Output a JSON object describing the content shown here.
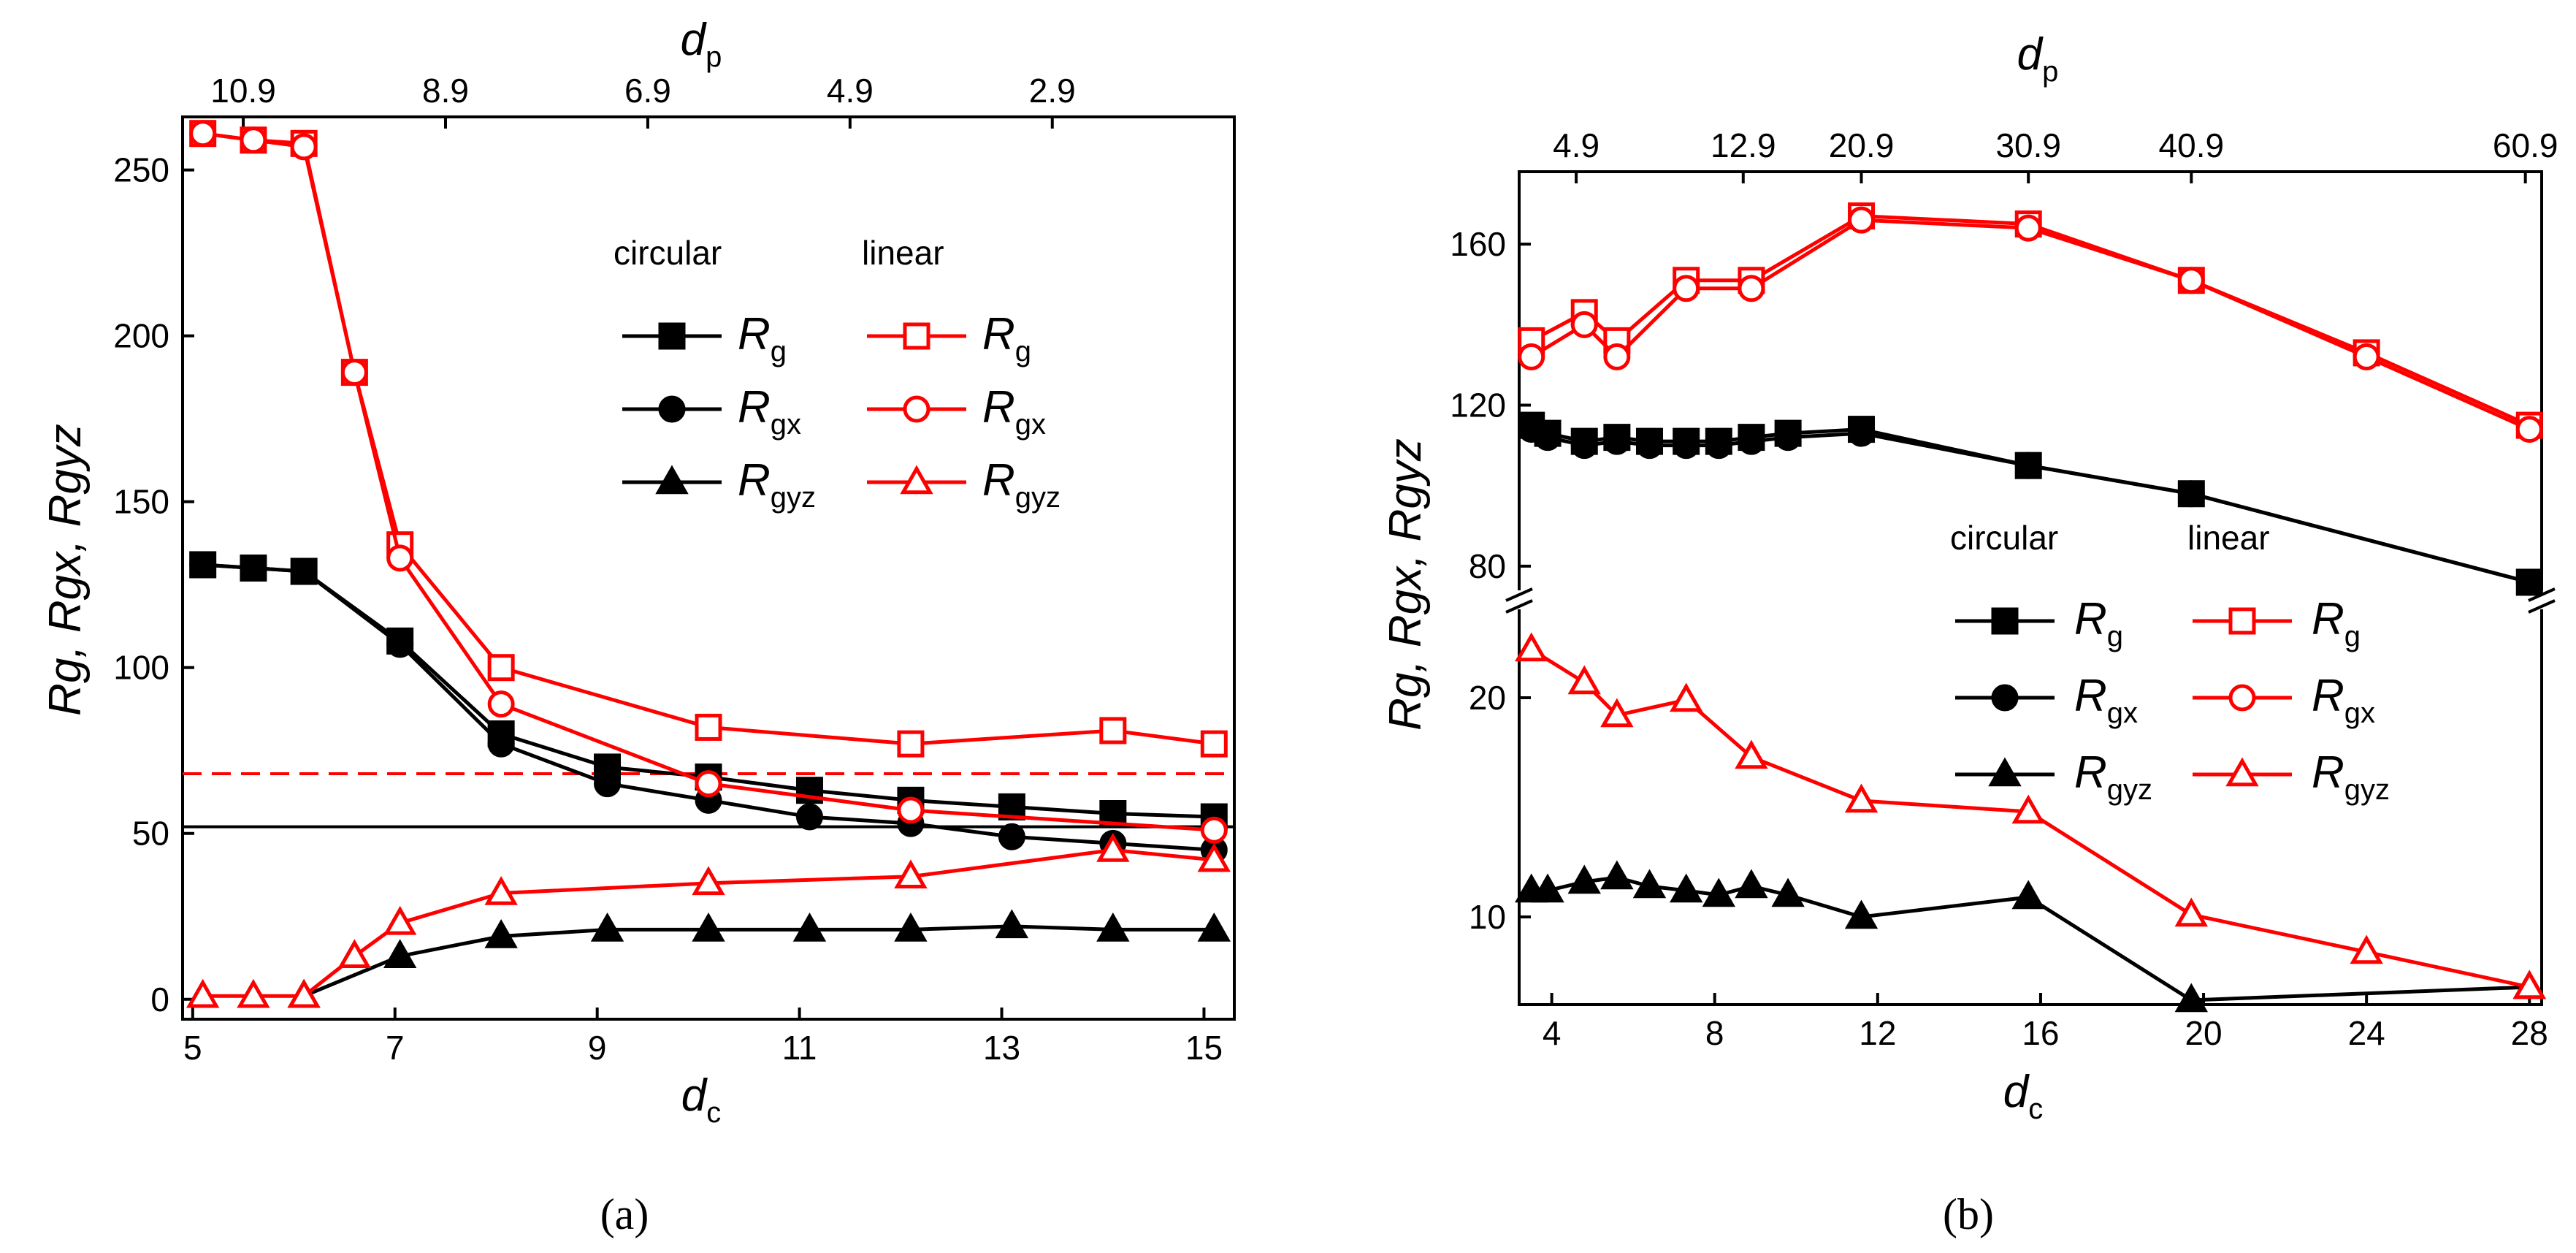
{
  "captions": [
    "(a)",
    "(b)"
  ],
  "chart_data": [
    {
      "type": "line",
      "panel": "a",
      "xlabel": {
        "main": "d",
        "sub": "c"
      },
      "x2label": {
        "main": "d",
        "sub": "p"
      },
      "ylabel": "Rg, Rgx, Rgyz",
      "xlim": [
        4.9,
        15.3
      ],
      "ylim": [
        -6,
        266
      ],
      "xticks": [
        5,
        7,
        9,
        11,
        13,
        15
      ],
      "xtick_labels": [
        "5",
        "7",
        "9",
        "11",
        "13",
        "15"
      ],
      "yticks": [
        0,
        50,
        100,
        150,
        200,
        250
      ],
      "ytick_labels": [
        "0",
        "50",
        "100",
        "150",
        "200",
        "250"
      ],
      "x2ticks": [
        5.5,
        7.5,
        9.5,
        11.5,
        13.5
      ],
      "x2tick_labels": [
        "10.9",
        "8.9",
        "6.9",
        "4.9",
        "2.9"
      ],
      "legend_headers": [
        "circular",
        "linear"
      ],
      "legend_labels": [
        {
          "main": "R",
          "sub": "g"
        },
        {
          "main": "R",
          "sub": "gx"
        },
        {
          "main": "R",
          "sub": "gyz"
        }
      ],
      "ref_lines": [
        {
          "y": 52,
          "color": "#000000",
          "style": "solid"
        },
        {
          "y": 68,
          "color": "#ff0000",
          "style": "dashed"
        }
      ],
      "series": [
        {
          "name": "circular Rg",
          "color": "#000000",
          "marker": "square",
          "filled": true,
          "x": [
            5.1,
            5.6,
            6.1,
            7.05,
            8.05,
            9.1,
            10.1,
            11.1,
            12.1,
            13.1,
            14.1,
            15.1
          ],
          "y": [
            131,
            130,
            129,
            108,
            80,
            70,
            67,
            63,
            60,
            58,
            56,
            55
          ]
        },
        {
          "name": "circular Rgx",
          "color": "#000000",
          "marker": "circle",
          "filled": true,
          "x": [
            5.1,
            5.6,
            6.1,
            7.05,
            8.05,
            9.1,
            10.1,
            11.1,
            12.1,
            13.1,
            14.1,
            15.1
          ],
          "y": [
            131,
            130,
            129,
            107,
            77,
            65,
            60,
            55,
            53,
            49,
            47,
            45
          ]
        },
        {
          "name": "circular Rgyz",
          "color": "#000000",
          "marker": "triangle",
          "filled": true,
          "x": [
            6.1,
            7.05,
            8.05,
            9.1,
            10.1,
            11.1,
            12.1,
            13.1,
            14.1,
            15.1
          ],
          "y": [
            1,
            13,
            19,
            21,
            21,
            21,
            21,
            22,
            21,
            21
          ]
        },
        {
          "name": "linear Rg",
          "color": "#ff0000",
          "marker": "square",
          "filled": false,
          "x": [
            5.1,
            5.6,
            6.1,
            6.6,
            7.05,
            8.05,
            10.1,
            12.1,
            14.1,
            15.1
          ],
          "y": [
            261,
            259,
            258,
            189,
            137,
            100,
            82,
            77,
            81,
            77
          ]
        },
        {
          "name": "linear Rgx",
          "color": "#ff0000",
          "marker": "circle",
          "filled": false,
          "x": [
            5.1,
            5.6,
            6.1,
            6.6,
            7.05,
            8.05,
            10.1,
            12.1,
            15.1
          ],
          "y": [
            261,
            259,
            257,
            189,
            133,
            89,
            65,
            57,
            51
          ]
        },
        {
          "name": "linear Rgyz",
          "color": "#ff0000",
          "marker": "triangle",
          "filled": false,
          "x": [
            5.1,
            5.6,
            6.1,
            6.6,
            7.05,
            8.05,
            10.1,
            12.1,
            14.1,
            15.1
          ],
          "y": [
            1,
            1,
            1,
            13,
            23,
            32,
            35,
            37,
            45,
            42
          ]
        }
      ]
    },
    {
      "type": "line",
      "panel": "b",
      "xlabel": {
        "main": "d",
        "sub": "c"
      },
      "x2label": {
        "main": "d",
        "sub": "p"
      },
      "ylabel": "Rg, Rgx, Rgyz",
      "xlim": [
        3.2,
        28.3
      ],
      "y_axis_break": true,
      "upper_ylim": [
        70,
        178
      ],
      "lower_ylim": [
        6,
        24
      ],
      "xticks": [
        4,
        8,
        12,
        16,
        20,
        24,
        28
      ],
      "xtick_labels": [
        "4",
        "8",
        "12",
        "16",
        "20",
        "24",
        "28"
      ],
      "upper_yticks": [
        80,
        120,
        160
      ],
      "upper_ytick_labels": [
        "80",
        "120",
        "160"
      ],
      "lower_yticks": [
        10,
        20
      ],
      "lower_ytick_labels": [
        "10",
        "20"
      ],
      "x2ticks": [
        4.6,
        8.7,
        11.6,
        15.7,
        19.7,
        27.9
      ],
      "x2tick_labels": [
        "4.9",
        "12.9",
        "20.9",
        "30.9",
        "40.9",
        "60.9"
      ],
      "legend_headers": [
        "circular",
        "linear"
      ],
      "legend_labels": [
        {
          "main": "R",
          "sub": "g"
        },
        {
          "main": "R",
          "sub": "gx"
        },
        {
          "main": "R",
          "sub": "gyz"
        }
      ],
      "series": [
        {
          "name": "circular Rg",
          "color": "#000000",
          "marker": "square",
          "filled": true,
          "part": "upper",
          "x": [
            3.5,
            3.9,
            4.8,
            5.6,
            6.4,
            7.3,
            8.1,
            8.9,
            9.8,
            11.6,
            15.7,
            19.7,
            28.0
          ],
          "y": [
            115,
            113,
            111,
            112,
            111,
            111,
            111,
            112,
            113,
            114,
            105,
            98,
            76
          ]
        },
        {
          "name": "circular Rgx",
          "color": "#000000",
          "marker": "circle",
          "filled": true,
          "part": "upper",
          "x": [
            3.5,
            3.9,
            4.8,
            5.6,
            6.4,
            7.3,
            8.1,
            8.9,
            9.8,
            11.6,
            15.7,
            19.7,
            28.0
          ],
          "y": [
            114,
            112,
            110,
            111,
            110,
            110,
            110,
            111,
            112,
            113,
            105,
            98,
            76
          ]
        },
        {
          "name": "circular Rgyz",
          "color": "#000000",
          "marker": "triangle",
          "filled": true,
          "part": "lower",
          "x": [
            3.5,
            3.9,
            4.8,
            5.6,
            6.4,
            7.3,
            8.1,
            8.9,
            9.8,
            11.6,
            15.7,
            19.7,
            28.0
          ],
          "y": [
            11.2,
            11.2,
            11.6,
            11.8,
            11.4,
            11.2,
            11.0,
            11.4,
            11.0,
            10.0,
            10.9,
            6.2,
            6.8
          ]
        },
        {
          "name": "linear Rg",
          "color": "#ff0000",
          "marker": "square",
          "filled": false,
          "part": "upper",
          "x": [
            3.5,
            4.8,
            5.6,
            7.3,
            8.9,
            11.6,
            15.7,
            19.7,
            24.0,
            28.0
          ],
          "y": [
            136,
            143,
            136,
            151,
            151,
            167,
            165,
            151,
            133,
            115
          ]
        },
        {
          "name": "linear Rgx",
          "color": "#ff0000",
          "marker": "circle",
          "filled": false,
          "part": "upper",
          "x": [
            3.5,
            4.8,
            5.6,
            7.3,
            8.9,
            11.6,
            15.7,
            19.7,
            24.0,
            28.0
          ],
          "y": [
            132,
            140,
            132,
            149,
            149,
            166,
            164,
            151,
            132,
            114
          ]
        },
        {
          "name": "linear Rgyz",
          "color": "#ff0000",
          "marker": "triangle",
          "filled": false,
          "part": "lower",
          "x": [
            3.5,
            4.8,
            5.6,
            7.3,
            8.9,
            11.6,
            15.7,
            19.7,
            24.0,
            28.0
          ],
          "y": [
            22.2,
            20.7,
            19.2,
            19.9,
            17.3,
            15.3,
            14.8,
            10.1,
            8.4,
            6.8
          ]
        }
      ]
    }
  ]
}
